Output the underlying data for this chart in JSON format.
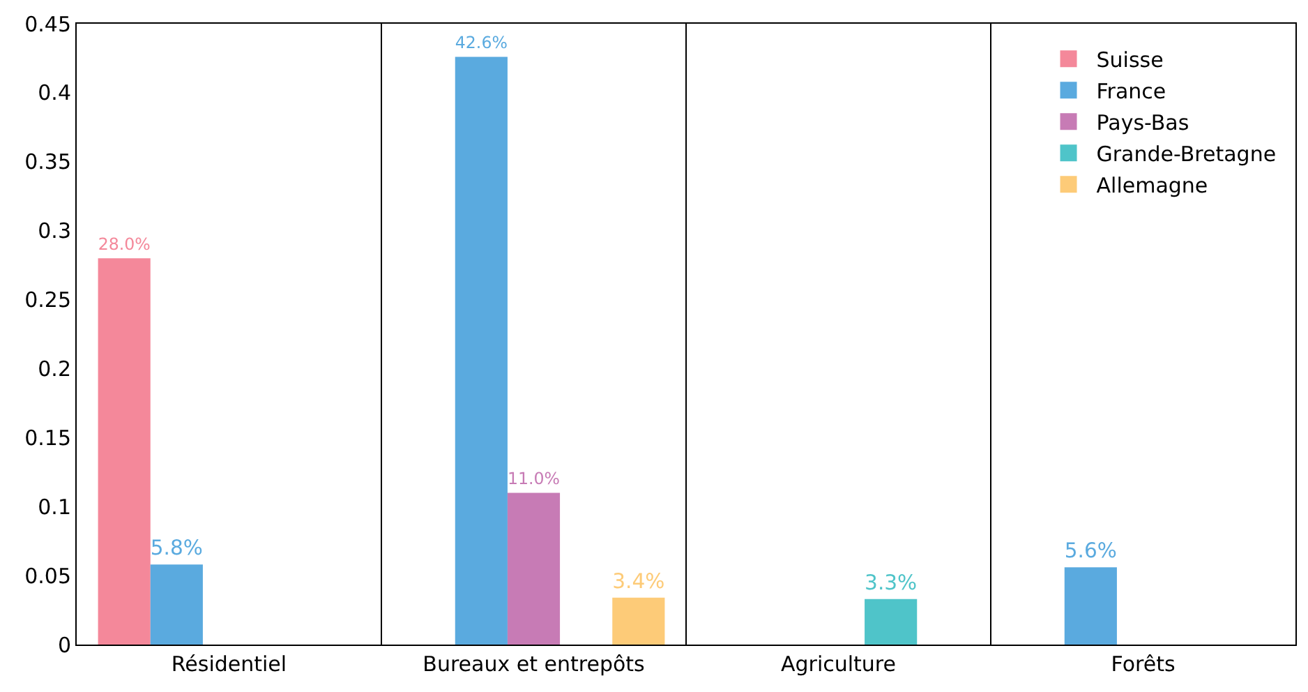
{
  "chart_data": {
    "type": "bar",
    "categories": [
      "Résidentiel",
      "Bureaux et entrepôts",
      "Agriculture",
      "Forêts"
    ],
    "series": [
      {
        "name": "Suisse",
        "color": "#f4889a",
        "values": [
          0.28,
          null,
          null,
          null
        ],
        "value_labels": [
          "28.0%",
          null,
          null,
          null
        ]
      },
      {
        "name": "France",
        "color": "#5aaadf",
        "values": [
          0.058,
          0.426,
          null,
          0.056
        ],
        "value_labels": [
          "5.8%",
          "42.6%",
          null,
          "5.6%"
        ]
      },
      {
        "name": "Pays-Bas",
        "color": "#c77bb5",
        "values": [
          null,
          0.11,
          null,
          null
        ],
        "value_labels": [
          null,
          "11.0%",
          null,
          null
        ]
      },
      {
        "name": "Grande-Bretagne",
        "color": "#4fc4c9",
        "values": [
          null,
          null,
          0.033,
          null
        ],
        "value_labels": [
          null,
          null,
          "3.3%",
          null
        ]
      },
      {
        "name": "Allemagne",
        "color": "#fdcb78",
        "values": [
          null,
          0.034,
          null,
          null
        ],
        "value_labels": [
          null,
          "3.4%",
          null,
          null
        ]
      }
    ],
    "ylim": [
      0,
      0.45
    ],
    "yticks": [
      0,
      0.05,
      0.1,
      0.15,
      0.2,
      0.25,
      0.3,
      0.35,
      0.4,
      0.45
    ],
    "grid": "x",
    "legend": "top right"
  }
}
